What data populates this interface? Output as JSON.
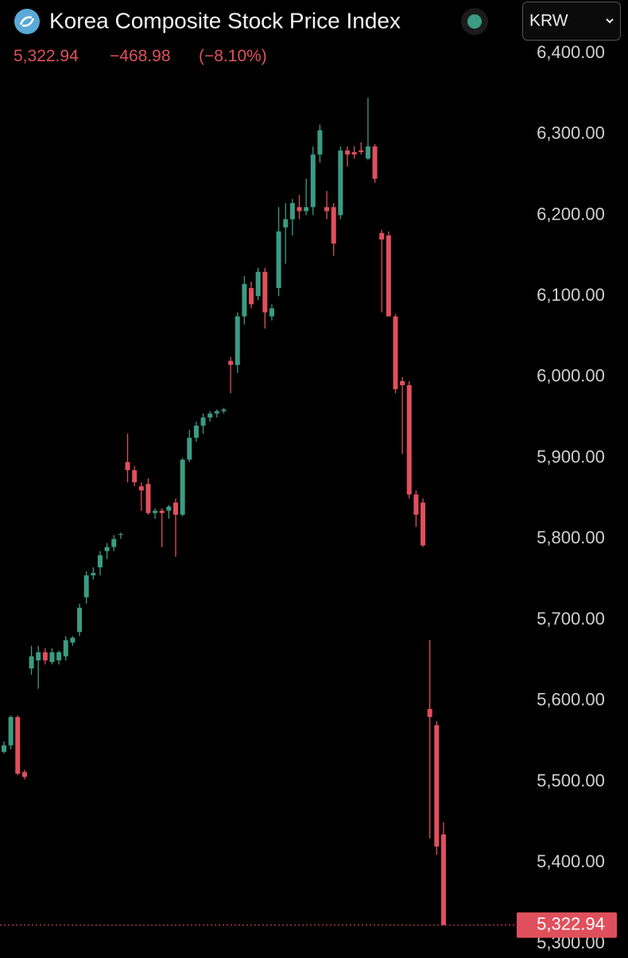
{
  "chart_data": {
    "type": "candlestick",
    "title": "Korea Composite Stock Price Index",
    "currency": "KRW",
    "price": "5,322.94",
    "change": "−468.98",
    "change_percent": "(−8.10%)",
    "up_color": "#3c9b83",
    "down_color": "#e0505c",
    "grid": false,
    "ylim": [
      5287.2,
      6465.9
    ],
    "yticks": [
      {
        "value": 5300,
        "label": "5,300.00"
      },
      {
        "value": 5400,
        "label": "5,400.00"
      },
      {
        "value": 5500,
        "label": "5,500.00"
      },
      {
        "value": 5600,
        "label": "5,600.00"
      },
      {
        "value": 5700,
        "label": "5,700.00"
      },
      {
        "value": 5800,
        "label": "5,800.00"
      },
      {
        "value": 5900,
        "label": "5,900.00"
      },
      {
        "value": 6000,
        "label": "6,000.00"
      },
      {
        "value": 6100,
        "label": "6,100.00"
      },
      {
        "value": 6200,
        "label": "6,200.00"
      },
      {
        "value": 6300,
        "label": "6,300.00"
      },
      {
        "value": 6400,
        "label": "6,400.00"
      }
    ],
    "last_price": {
      "value": 5322.94,
      "label": "5,322.94"
    },
    "open": [
      5537,
      5545,
      5580,
      5512,
      5640,
      5650,
      5660,
      5648,
      5650,
      5655,
      5672,
      5685,
      5728,
      5755,
      5765,
      5785,
      5790,
      5805,
      5895,
      5885,
      5865,
      5868,
      5832,
      5835,
      5835,
      5845,
      5830,
      5898,
      5925,
      5940,
      5950,
      5955,
      5958,
      6020,
      6015,
      6075,
      6110,
      6100,
      6130,
      6075,
      6110,
      6185,
      6195,
      6210,
      6205,
      6210,
      6275,
      6210,
      6210,
      6200,
      6280,
      6278,
      6280,
      6270,
      6285,
      6178,
      6175,
      6075,
      5995,
      5990,
      5855,
      5845,
      5590,
      5570,
      5435
    ],
    "high": [
      5550,
      5582,
      5582,
      5515,
      5668,
      5668,
      5665,
      5665,
      5662,
      5680,
      5680,
      5720,
      5760,
      5765,
      5785,
      5795,
      5805,
      5808,
      5930,
      5890,
      5870,
      5875,
      5838,
      5838,
      5842,
      5850,
      5900,
      5935,
      5945,
      5955,
      5958,
      5960,
      5962,
      6025,
      6080,
      6125,
      6118,
      6135,
      6135,
      6090,
      6210,
      6215,
      6220,
      6225,
      6245,
      6285,
      6312,
      6230,
      6215,
      6285,
      6285,
      6285,
      6290,
      6345,
      6288,
      6182,
      6180,
      6078,
      6000,
      5995,
      5860,
      5850,
      5675,
      5575,
      5450
    ],
    "low": [
      5535,
      5540,
      5508,
      5503,
      5632,
      5615,
      5645,
      5645,
      5645,
      5650,
      5668,
      5680,
      5720,
      5750,
      5755,
      5775,
      5785,
      5800,
      5870,
      5865,
      5835,
      5830,
      5825,
      5790,
      5825,
      5778,
      5828,
      5895,
      5920,
      5930,
      5945,
      5950,
      5955,
      5980,
      6005,
      6065,
      6085,
      6095,
      6060,
      6070,
      6100,
      6140,
      6175,
      6195,
      6200,
      6200,
      6265,
      6195,
      6150,
      6195,
      6260,
      6270,
      6275,
      6268,
      6240,
      6080,
      6075,
      5980,
      5905,
      5850,
      5815,
      5790,
      5430,
      5410,
      5322.94
    ],
    "close": [
      5545,
      5580,
      5510,
      5506,
      5655,
      5660,
      5650,
      5660,
      5660,
      5675,
      5678,
      5715,
      5755,
      5758,
      5780,
      5790,
      5800,
      5806,
      5885,
      5870,
      5860,
      5832,
      5835,
      5832,
      5840,
      5830,
      5898,
      5925,
      5940,
      5950,
      5955,
      5958,
      5960,
      6015,
      6075,
      6115,
      6090,
      6130,
      6080,
      6085,
      6180,
      6195,
      6215,
      6205,
      6210,
      6275,
      6305,
      6205,
      6165,
      6280,
      6275,
      6275,
      6278,
      6285,
      6245,
      6170,
      6075,
      5985,
      5990,
      5855,
      5830,
      5792,
      5580,
      5420,
      5322.94
    ]
  }
}
